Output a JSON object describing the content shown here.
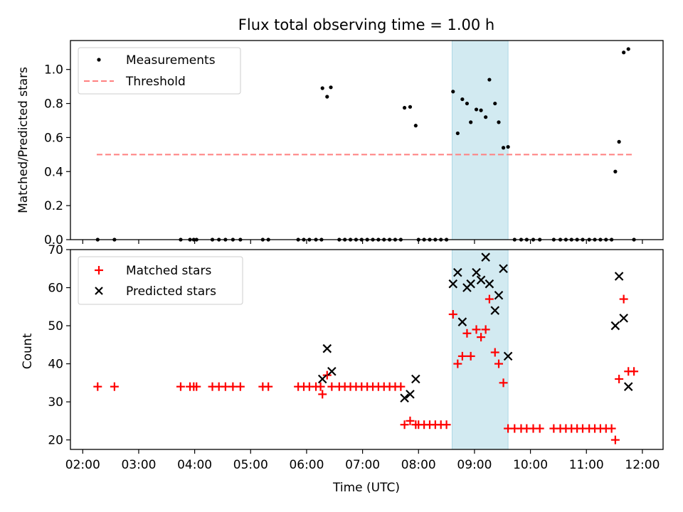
{
  "chart_data": [
    {
      "type": "scatter",
      "title": "Flux total observing time = 1.00 h",
      "xlabel": "",
      "ylabel": "Matched/Predicted stars",
      "ylim": [
        0,
        1.17
      ],
      "xlim_hours": [
        1.78,
        12.37
      ],
      "yticks": [
        "0.0",
        "0.2",
        "0.4",
        "0.6",
        "0.8",
        "1.0"
      ],
      "ytick_values": [
        0.0,
        0.2,
        0.4,
        0.6,
        0.8,
        1.0
      ],
      "highlight_span": {
        "from": "08:36",
        "to": "09:36",
        "color": "#add8e6"
      },
      "legend": {
        "placement": "top-left",
        "entries": [
          "Measurements",
          "Threshold"
        ]
      },
      "threshold": {
        "name": "Threshold",
        "y": 0.5,
        "x_from": "02:15",
        "x_to": "11:50",
        "color": "#ff8080"
      },
      "series": [
        {
          "name": "Measurements",
          "marker": "dot",
          "color": "#000000",
          "points": [
            [
              "02:16",
              0
            ],
            [
              "02:34",
              0
            ],
            [
              "03:45",
              0
            ],
            [
              "03:55",
              0
            ],
            [
              "03:59",
              0
            ],
            [
              "04:02",
              0
            ],
            [
              "04:19",
              0
            ],
            [
              "04:26",
              0
            ],
            [
              "04:33",
              0
            ],
            [
              "04:41",
              0
            ],
            [
              "04:49",
              0
            ],
            [
              "05:13",
              0
            ],
            [
              "05:19",
              0
            ],
            [
              "05:51",
              0
            ],
            [
              "05:57",
              0
            ],
            [
              "06:03",
              0
            ],
            [
              "06:10",
              0
            ],
            [
              "06:16",
              0
            ],
            [
              "06:17",
              0.89
            ],
            [
              "06:22",
              0.84
            ],
            [
              "06:26",
              0.895
            ],
            [
              "06:35",
              0
            ],
            [
              "06:41",
              0
            ],
            [
              "06:47",
              0
            ],
            [
              "06:53",
              0
            ],
            [
              "06:59",
              0
            ],
            [
              "07:05",
              0
            ],
            [
              "07:11",
              0
            ],
            [
              "07:17",
              0
            ],
            [
              "07:23",
              0
            ],
            [
              "07:29",
              0
            ],
            [
              "07:35",
              0
            ],
            [
              "07:41",
              0
            ],
            [
              "07:45",
              0.775
            ],
            [
              "07:51",
              0.78
            ],
            [
              "07:57",
              0.67
            ],
            [
              "08:00",
              0
            ],
            [
              "08:06",
              0
            ],
            [
              "08:12",
              0
            ],
            [
              "08:18",
              0
            ],
            [
              "08:24",
              0
            ],
            [
              "08:30",
              0
            ],
            [
              "08:37",
              0.87
            ],
            [
              "08:42",
              0.625
            ],
            [
              "08:47",
              0.825
            ],
            [
              "08:52",
              0.8
            ],
            [
              "08:56",
              0.69
            ],
            [
              "09:02",
              0.765
            ],
            [
              "09:07",
              0.76
            ],
            [
              "09:12",
              0.72
            ],
            [
              "09:16",
              0.94
            ],
            [
              "09:22",
              0.8
            ],
            [
              "09:26",
              0.69
            ],
            [
              "09:31",
              0.54
            ],
            [
              "09:36",
              0.545
            ],
            [
              "09:43",
              0
            ],
            [
              "09:50",
              0
            ],
            [
              "09:56",
              0
            ],
            [
              "10:03",
              0
            ],
            [
              "10:10",
              0
            ],
            [
              "10:25",
              0
            ],
            [
              "10:32",
              0
            ],
            [
              "10:38",
              0
            ],
            [
              "10:44",
              0
            ],
            [
              "10:50",
              0
            ],
            [
              "10:56",
              0
            ],
            [
              "11:03",
              0
            ],
            [
              "11:09",
              0
            ],
            [
              "11:15",
              0
            ],
            [
              "11:21",
              0
            ],
            [
              "11:27",
              0
            ],
            [
              "11:31",
              0.4
            ],
            [
              "11:35",
              0.575
            ],
            [
              "11:40",
              1.1
            ],
            [
              "11:45",
              1.12
            ],
            [
              "11:51",
              0
            ]
          ]
        }
      ]
    },
    {
      "type": "scatter",
      "title": "",
      "xlabel": "Time (UTC)",
      "ylabel": "Count",
      "ylim": [
        17.5,
        70
      ],
      "xlim_hours": [
        1.78,
        12.37
      ],
      "yticks": [
        "20",
        "30",
        "40",
        "50",
        "60",
        "70"
      ],
      "ytick_values": [
        20,
        30,
        40,
        50,
        60,
        70
      ],
      "xticks": [
        "02:00",
        "03:00",
        "04:00",
        "05:00",
        "06:00",
        "07:00",
        "08:00",
        "09:00",
        "10:00",
        "11:00",
        "12:00"
      ],
      "highlight_span": {
        "from": "08:36",
        "to": "09:36",
        "color": "#add8e6"
      },
      "legend": {
        "placement": "top-left",
        "entries": [
          "Matched stars",
          "Predicted stars"
        ]
      },
      "series": [
        {
          "name": "Matched stars",
          "marker": "plus",
          "color": "#ff0000",
          "points": [
            [
              "02:16",
              34
            ],
            [
              "02:34",
              34
            ],
            [
              "03:45",
              34
            ],
            [
              "03:55",
              34
            ],
            [
              "03:59",
              34
            ],
            [
              "04:02",
              34
            ],
            [
              "04:19",
              34
            ],
            [
              "04:26",
              34
            ],
            [
              "04:33",
              34
            ],
            [
              "04:41",
              34
            ],
            [
              "04:49",
              34
            ],
            [
              "05:13",
              34
            ],
            [
              "05:19",
              34
            ],
            [
              "05:51",
              34
            ],
            [
              "05:57",
              34
            ],
            [
              "06:03",
              34
            ],
            [
              "06:10",
              34
            ],
            [
              "06:15",
              34
            ],
            [
              "06:17",
              32
            ],
            [
              "06:22",
              37
            ],
            [
              "06:27",
              34
            ],
            [
              "06:35",
              34
            ],
            [
              "06:41",
              34
            ],
            [
              "06:47",
              34
            ],
            [
              "06:53",
              34
            ],
            [
              "06:59",
              34
            ],
            [
              "07:05",
              34
            ],
            [
              "07:11",
              34
            ],
            [
              "07:17",
              34
            ],
            [
              "07:23",
              34
            ],
            [
              "07:29",
              34
            ],
            [
              "07:35",
              34
            ],
            [
              "07:41",
              34
            ],
            [
              "07:45",
              24
            ],
            [
              "07:51",
              25
            ],
            [
              "07:57",
              24
            ],
            [
              "08:00",
              24
            ],
            [
              "08:06",
              24
            ],
            [
              "08:12",
              24
            ],
            [
              "08:18",
              24
            ],
            [
              "08:24",
              24
            ],
            [
              "08:30",
              24
            ],
            [
              "08:37",
              53
            ],
            [
              "08:42",
              40
            ],
            [
              "08:47",
              42
            ],
            [
              "08:52",
              48
            ],
            [
              "08:56",
              42
            ],
            [
              "09:02",
              49
            ],
            [
              "09:07",
              47
            ],
            [
              "09:12",
              49
            ],
            [
              "09:16",
              57
            ],
            [
              "09:22",
              43
            ],
            [
              "09:26",
              40
            ],
            [
              "09:31",
              35
            ],
            [
              "09:36",
              23
            ],
            [
              "09:43",
              23
            ],
            [
              "09:50",
              23
            ],
            [
              "09:56",
              23
            ],
            [
              "10:03",
              23
            ],
            [
              "10:10",
              23
            ],
            [
              "10:25",
              23
            ],
            [
              "10:32",
              23
            ],
            [
              "10:38",
              23
            ],
            [
              "10:44",
              23
            ],
            [
              "10:50",
              23
            ],
            [
              "10:56",
              23
            ],
            [
              "11:03",
              23
            ],
            [
              "11:09",
              23
            ],
            [
              "11:15",
              23
            ],
            [
              "11:21",
              23
            ],
            [
              "11:27",
              23
            ],
            [
              "11:31",
              20
            ],
            [
              "11:35",
              36
            ],
            [
              "11:40",
              57
            ],
            [
              "11:45",
              38
            ],
            [
              "11:51",
              38
            ]
          ]
        },
        {
          "name": "Predicted stars",
          "marker": "x",
          "color": "#000000",
          "points": [
            [
              "06:17",
              36
            ],
            [
              "06:22",
              44
            ],
            [
              "06:27",
              38
            ],
            [
              "07:45",
              31
            ],
            [
              "07:51",
              32
            ],
            [
              "07:57",
              36
            ],
            [
              "08:37",
              61
            ],
            [
              "08:42",
              64
            ],
            [
              "08:47",
              51
            ],
            [
              "08:52",
              60
            ],
            [
              "08:56",
              61
            ],
            [
              "09:02",
              64
            ],
            [
              "09:07",
              62
            ],
            [
              "09:12",
              68
            ],
            [
              "09:16",
              61
            ],
            [
              "09:22",
              54
            ],
            [
              "09:26",
              58
            ],
            [
              "09:31",
              65
            ],
            [
              "09:36",
              42
            ],
            [
              "11:31",
              50
            ],
            [
              "11:35",
              63
            ],
            [
              "11:40",
              52
            ],
            [
              "11:45",
              34
            ]
          ]
        }
      ]
    }
  ]
}
